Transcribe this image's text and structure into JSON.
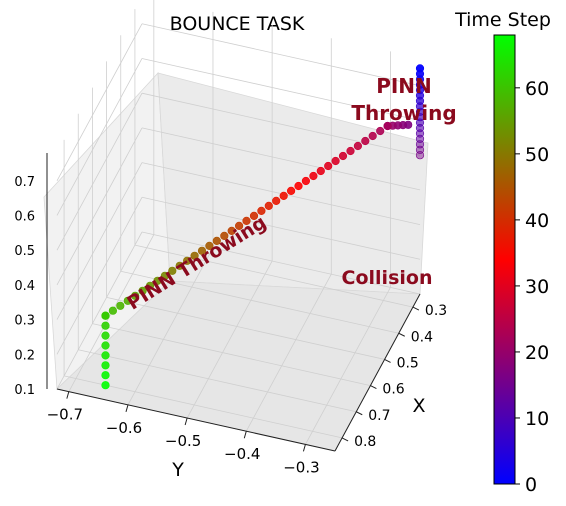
{
  "chart_data": {
    "type": "scatter",
    "projection": "3d",
    "title": "BOUNCE TASK",
    "xlabel": "X",
    "ylabel": "Y",
    "zlabel": "",
    "x_ticks": [
      "0.3",
      "0.4",
      "0.5",
      "0.6",
      "0.7",
      "0.8"
    ],
    "y_ticks": [
      "−0.7",
      "−0.6",
      "−0.5",
      "−0.4",
      "−0.3"
    ],
    "z_ticks": [
      "0.1",
      "0.2",
      "0.3",
      "0.4",
      "0.5",
      "0.6",
      "0.7"
    ],
    "xlim": [
      0.25,
      0.85
    ],
    "ylim": [
      -0.72,
      -0.25
    ],
    "zlim": [
      0.1,
      0.78
    ],
    "grid": true,
    "colorbar": {
      "title": "Time Step",
      "ticks": [
        "0",
        "10",
        "20",
        "30",
        "40",
        "50",
        "60"
      ],
      "range": [
        0,
        68
      ],
      "colors": [
        "#0000ff",
        "#ff0000",
        "#00ff00"
      ]
    },
    "annotations": {
      "top": [
        "PINN",
        "Throwing"
      ],
      "collision": "Collision",
      "diagonal": "PINN Throwing"
    },
    "color_scale": "blue-red-green by time step",
    "segments": [
      {
        "phase": "throw",
        "t_start": 0,
        "t_end": 16,
        "x": [
          0.25,
          0.25
        ],
        "y": [
          -0.25,
          -0.25
        ],
        "z": [
          0.75,
          0.5
        ]
      },
      {
        "phase": "horizontal",
        "t_start": 17,
        "t_end": 21,
        "x": [
          0.25,
          0.27
        ],
        "y": [
          -0.27,
          -0.3
        ],
        "z": [
          0.58,
          0.58
        ]
      },
      {
        "phase": "diagonal",
        "t_start": 22,
        "t_end": 60,
        "x": [
          0.27,
          0.8
        ],
        "y": [
          -0.3,
          -0.65
        ],
        "z": [
          0.58,
          0.3
        ]
      },
      {
        "phase": "bounce",
        "t_start": 61,
        "t_end": 68,
        "x": [
          0.8,
          0.8
        ],
        "y": [
          -0.65,
          -0.65
        ],
        "z": [
          0.3,
          0.1
        ]
      }
    ]
  }
}
